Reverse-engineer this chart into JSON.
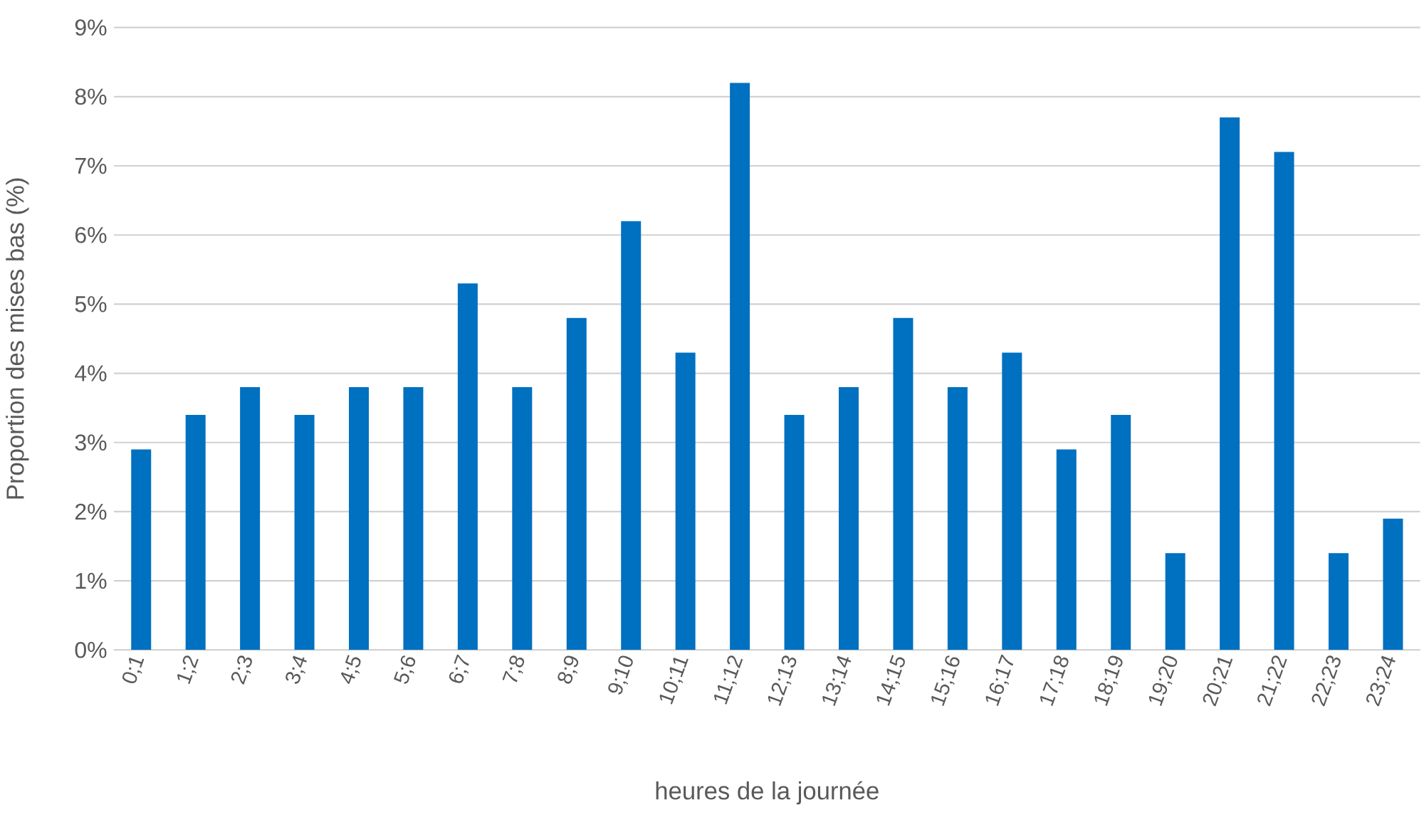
{
  "chart_data": {
    "type": "bar",
    "xlabel": "heures de la journée",
    "ylabel": "Proportion des mises bas (%)",
    "categories": [
      "0;1",
      "1;2",
      "2;3",
      "3;4",
      "4;5",
      "5;6",
      "6;7",
      "7;8",
      "8;9",
      "9;10",
      "10;11",
      "11;12",
      "12;13",
      "13;14",
      "14;15",
      "15;16",
      "16;17",
      "17;18",
      "18;19",
      "19;20",
      "20;21",
      "21;22",
      "22;23",
      "23;24"
    ],
    "values": [
      2.9,
      3.4,
      3.8,
      3.4,
      3.8,
      3.8,
      5.3,
      3.8,
      4.8,
      6.2,
      4.3,
      8.2,
      3.4,
      3.8,
      4.8,
      3.8,
      4.3,
      2.9,
      3.4,
      1.4,
      7.7,
      7.2,
      1.4,
      1.9
    ],
    "color": "#0070c0",
    "ylim": [
      0,
      9
    ],
    "yticks": [
      {
        "value": 0,
        "label": "0%"
      },
      {
        "value": 1,
        "label": "1%"
      },
      {
        "value": 2,
        "label": "2%"
      },
      {
        "value": 3,
        "label": "3%"
      },
      {
        "value": 4,
        "label": "4%"
      },
      {
        "value": 5,
        "label": "5%"
      },
      {
        "value": 6,
        "label": "6%"
      },
      {
        "value": 7,
        "label": "7%"
      },
      {
        "value": 8,
        "label": "8%"
      },
      {
        "value": 9,
        "label": "9%"
      }
    ],
    "grid": "y"
  }
}
